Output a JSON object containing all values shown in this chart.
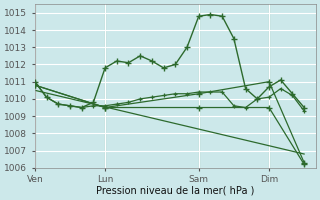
{
  "background_color": "#cce8ea",
  "grid_color": "#ffffff",
  "line_color": "#2d6a2d",
  "xlabel": "Pression niveau de la mer( hPa )",
  "ylim": [
    1006,
    1015.5
  ],
  "yticks": [
    1006,
    1007,
    1008,
    1009,
    1010,
    1011,
    1012,
    1013,
    1014,
    1015
  ],
  "xtick_labels": [
    "Ven",
    "Lun",
    "Sam",
    "Dim"
  ],
  "xtick_positions": [
    0,
    6,
    14,
    20
  ],
  "vline_positions": [
    0,
    6,
    14,
    20
  ],
  "xlim": [
    0,
    24
  ],
  "series": [
    {
      "x": [
        0,
        1,
        2,
        3,
        4,
        5,
        6,
        7,
        8,
        9,
        10,
        11,
        12,
        13,
        14,
        15,
        16,
        17,
        18,
        19,
        20,
        21,
        22,
        23
      ],
      "y": [
        1011.0,
        1010.1,
        1009.7,
        1009.6,
        1009.5,
        1009.8,
        1011.8,
        1012.2,
        1012.1,
        1012.5,
        1012.2,
        1011.8,
        1012.0,
        1013.0,
        1014.8,
        1014.9,
        1014.8,
        1013.5,
        1010.6,
        1010.0,
        1010.7,
        1011.1,
        1010.3,
        1009.5
      ],
      "marker": true
    },
    {
      "x": [
        0,
        1,
        2,
        3,
        4,
        5,
        6,
        7,
        8,
        9,
        10,
        11,
        12,
        13,
        14,
        15,
        16,
        17,
        18,
        19,
        20,
        21,
        22,
        23
      ],
      "y": [
        1011.0,
        1010.1,
        1009.7,
        1009.6,
        1009.5,
        1009.6,
        1009.6,
        1009.7,
        1009.8,
        1010.0,
        1010.1,
        1010.2,
        1010.3,
        1010.3,
        1010.4,
        1010.4,
        1010.4,
        1009.6,
        1009.5,
        1010.0,
        1010.1,
        1010.6,
        1010.2,
        1009.3
      ],
      "marker": true
    },
    {
      "x": [
        0,
        6,
        14,
        20,
        23
      ],
      "y": [
        1010.8,
        1009.5,
        1009.5,
        1009.5,
        1006.2
      ],
      "marker": true
    },
    {
      "x": [
        0,
        6,
        14,
        20,
        23
      ],
      "y": [
        1010.8,
        1009.5,
        1010.3,
        1011.0,
        1006.3
      ],
      "marker": true
    },
    {
      "x": [
        0,
        23
      ],
      "y": [
        1010.5,
        1006.8
      ],
      "marker": false
    }
  ]
}
